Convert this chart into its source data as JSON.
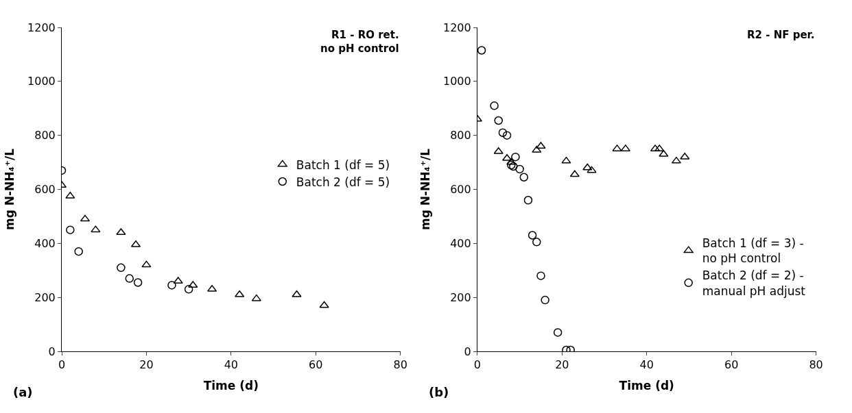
{
  "chart_data": [
    {
      "type": "scatter",
      "title": "R1 - RO ret.\nno pH control",
      "xlabel": "Time (d)",
      "ylabel": "mg N-NH₄⁺/L",
      "xlim": [
        0,
        80
      ],
      "xticks": [
        0,
        20,
        40,
        60,
        80
      ],
      "ylim": [
        0,
        1200
      ],
      "yticks": [
        0,
        200,
        400,
        600,
        800,
        1000,
        1200
      ],
      "grid": false,
      "legend": "right",
      "annotations": [
        "(a)"
      ],
      "series": [
        {
          "name": "Batch 1 (df = 5)",
          "color": "#000000",
          "marker": "triangle",
          "x": [
            0,
            2,
            5.5,
            8,
            14,
            17.5,
            20,
            27.5,
            31,
            35.5,
            42,
            46,
            55.5,
            62
          ],
          "values": [
            615,
            575,
            490,
            450,
            440,
            395,
            320,
            260,
            245,
            230,
            210,
            195,
            210,
            170
          ]
        },
        {
          "name": "Batch 2 (df = 5)",
          "color": "#000000",
          "marker": "circle",
          "x": [
            0,
            2,
            4,
            14,
            16,
            18,
            26,
            30
          ],
          "values": [
            670,
            450,
            370,
            310,
            270,
            255,
            245,
            230
          ]
        }
      ]
    },
    {
      "type": "scatter",
      "title": "R2 - NF per.",
      "xlabel": "Time (d)",
      "ylabel": "mg N-NH₄⁺/L",
      "xlim": [
        0,
        80
      ],
      "xticks": [
        0,
        20,
        40,
        60,
        80
      ],
      "ylim": [
        0,
        1200
      ],
      "yticks": [
        0,
        200,
        400,
        600,
        800,
        1000,
        1200
      ],
      "grid": false,
      "legend": "bottom right",
      "annotations": [
        "(b)"
      ],
      "series": [
        {
          "name": "Batch 1 (df = 3) -\nno pH control",
          "color": "#000000",
          "marker": "triangle",
          "x": [
            0,
            5,
            7,
            8,
            14,
            15,
            21,
            23,
            26,
            27,
            33,
            35,
            42,
            43,
            44,
            47,
            49
          ],
          "values": [
            860,
            740,
            715,
            700,
            745,
            760,
            705,
            655,
            680,
            670,
            750,
            750,
            750,
            750,
            730,
            705,
            720
          ]
        },
        {
          "name": "Batch 2 (df = 2) -\nmanual pH adjust",
          "color": "#000000",
          "marker": "circle",
          "x": [
            1,
            4,
            5,
            6,
            7,
            8,
            8.5,
            9,
            10,
            11,
            12,
            13,
            14,
            15,
            16,
            19,
            21,
            22
          ],
          "values": [
            1115,
            910,
            855,
            810,
            800,
            690,
            685,
            720,
            675,
            645,
            560,
            430,
            405,
            280,
            190,
            70,
            5,
            5
          ]
        }
      ]
    }
  ]
}
